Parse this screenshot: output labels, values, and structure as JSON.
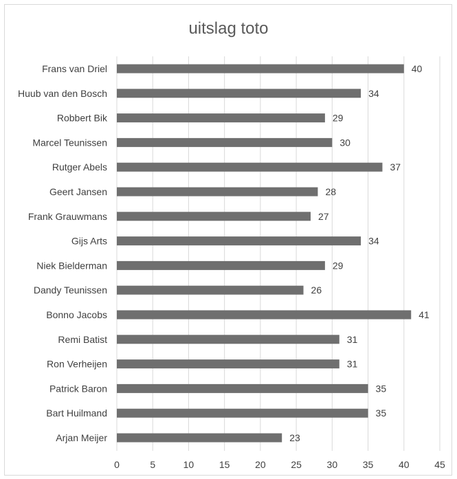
{
  "chart_data": {
    "type": "bar",
    "orientation": "horizontal",
    "title": "uitslag toto",
    "xlabel": "",
    "ylabel": "",
    "xlim": [
      0,
      45
    ],
    "xticks": [
      0,
      5,
      10,
      15,
      20,
      25,
      30,
      35,
      40,
      45
    ],
    "grid": true,
    "legend": "none",
    "bar_color": "#6f6f6f",
    "categories": [
      "Frans van Driel",
      "Huub van den Bosch",
      "Robbert Bik",
      "Marcel Teunissen",
      "Rutger Abels",
      "Geert Jansen",
      "Frank Grauwmans",
      "Gijs Arts",
      "Niek Bielderman",
      "Dandy Teunissen",
      "Bonno Jacobs",
      "Remi Batist",
      "Ron Verheijen",
      "Patrick Baron",
      "Bart Huilmand",
      "Arjan Meijer"
    ],
    "values": [
      40,
      34,
      29,
      30,
      37,
      28,
      27,
      34,
      29,
      26,
      41,
      31,
      31,
      35,
      35,
      23
    ]
  }
}
